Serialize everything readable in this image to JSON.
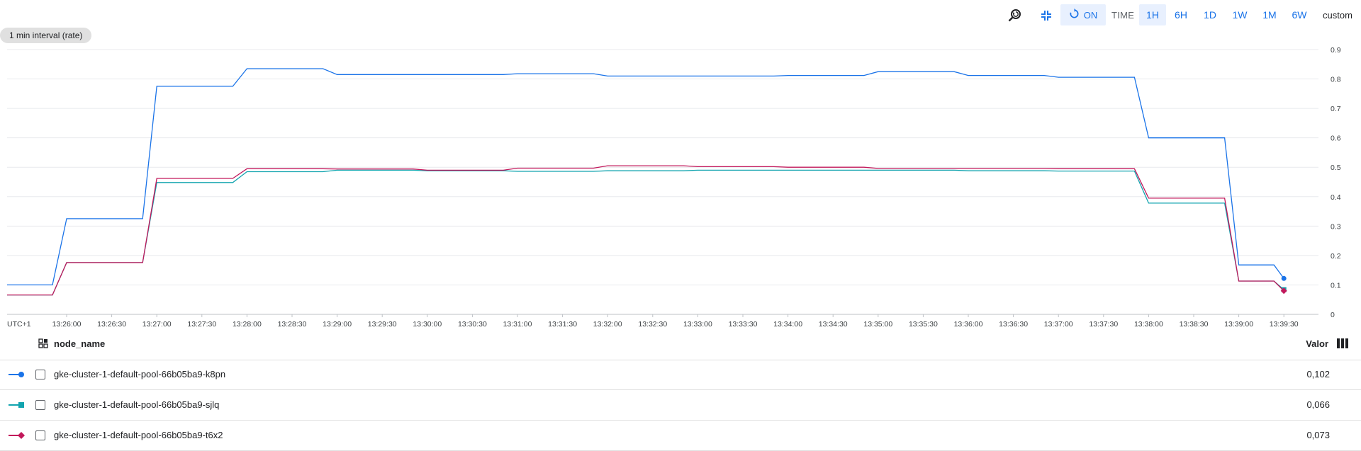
{
  "toolbar": {
    "zoom_icon": "zoom-reset-icon",
    "collapse_icon": "collapse-icon",
    "autorefresh": {
      "icon": "refresh-icon",
      "label": "ON"
    },
    "time_label": "TIME",
    "ranges": [
      {
        "label": "1H",
        "active": true
      },
      {
        "label": "6H",
        "active": false
      },
      {
        "label": "1D",
        "active": false
      },
      {
        "label": "1W",
        "active": false
      },
      {
        "label": "1M",
        "active": false
      },
      {
        "label": "6W",
        "active": false
      }
    ],
    "custom_label": "custom"
  },
  "interval_chip": "1 min interval (rate)",
  "chart_data": {
    "type": "line",
    "timezone_label": "UTC+1",
    "x_ticks": [
      "13:26:00",
      "13:26:30",
      "13:27:00",
      "13:27:30",
      "13:28:00",
      "13:28:30",
      "13:29:00",
      "13:29:30",
      "13:30:00",
      "13:30:30",
      "13:31:00",
      "13:31:30",
      "13:32:00",
      "13:32:30",
      "13:33:00",
      "13:33:30",
      "13:34:00",
      "13:34:30",
      "13:35:00",
      "13:35:30",
      "13:36:00",
      "13:36:30",
      "13:37:00",
      "13:37:30",
      "13:38:00",
      "13:38:30",
      "13:39:00",
      "13:39:30"
    ],
    "ylim": [
      0,
      0.9
    ],
    "y_ticks": [
      0,
      0.1,
      0.2,
      0.3,
      0.4,
      0.5,
      0.6,
      0.7,
      0.8,
      0.9
    ],
    "y_axis_position": "right",
    "grid": true,
    "x": [
      "13:25:00",
      "13:26:00",
      "13:27:00",
      "13:28:00",
      "13:29:00",
      "13:30:00",
      "13:31:00",
      "13:32:00",
      "13:33:00",
      "13:34:00",
      "13:35:00",
      "13:36:00",
      "13:37:00",
      "13:38:00",
      "13:39:00",
      "13:39:30"
    ],
    "series": [
      {
        "name": "gke-cluster-1-default-pool-66b05ba9-k8pn",
        "color": "#1a73e8",
        "marker": "circle",
        "values": [
          0.1,
          0.325,
          0.775,
          0.835,
          0.815,
          0.815,
          0.818,
          0.81,
          0.81,
          0.812,
          0.825,
          0.812,
          0.806,
          0.6,
          0.168,
          0.122
        ]
      },
      {
        "name": "gke-cluster-1-default-pool-66b05ba9-sjlq",
        "color": "#12a4af",
        "marker": "square",
        "values": [
          0.066,
          0.176,
          0.448,
          0.485,
          0.49,
          0.488,
          0.486,
          0.488,
          0.49,
          0.49,
          0.49,
          0.488,
          0.487,
          0.378,
          0.113,
          0.084
        ]
      },
      {
        "name": "gke-cluster-1-default-pool-66b05ba9-t6x2",
        "color": "#c2185b",
        "marker": "diamond",
        "values": [
          0.066,
          0.176,
          0.462,
          0.495,
          0.494,
          0.49,
          0.497,
          0.505,
          0.502,
          0.5,
          0.496,
          0.496,
          0.495,
          0.395,
          0.113,
          0.08
        ]
      }
    ]
  },
  "legend": {
    "group_icon": "group-by-icon",
    "column_title": "node_name",
    "value_title": "Valor",
    "columns_icon": "columns-icon",
    "rows": [
      {
        "name": "gke-cluster-1-default-pool-66b05ba9-k8pn",
        "value": "0,102",
        "color": "#1a73e8",
        "marker": "circle"
      },
      {
        "name": "gke-cluster-1-default-pool-66b05ba9-sjlq",
        "value": "0,066",
        "color": "#12a4af",
        "marker": "square"
      },
      {
        "name": "gke-cluster-1-default-pool-66b05ba9-t6x2",
        "value": "0,073",
        "color": "#c2185b",
        "marker": "diamond"
      }
    ]
  }
}
